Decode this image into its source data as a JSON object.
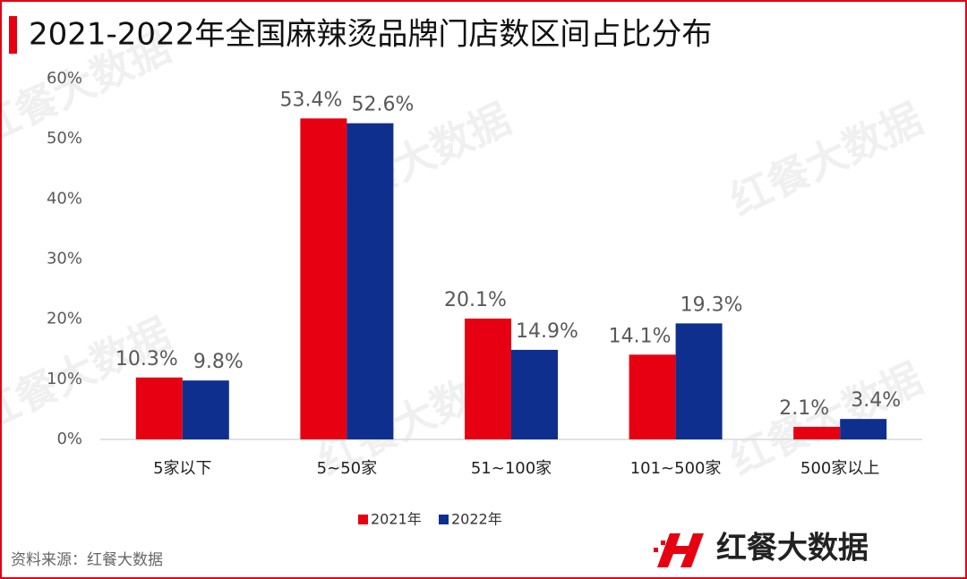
{
  "chart_data": {
    "type": "bar",
    "title": "2021-2022年全国麻辣烫品牌门店数区间占比分布",
    "categories": [
      "5家以下",
      "5~50家",
      "51~100家",
      "101~500家",
      "500家以上"
    ],
    "series": [
      {
        "name": "2021年",
        "color": "#e60012",
        "values": [
          10.3,
          53.4,
          20.1,
          14.1,
          2.1
        ],
        "value_labels": [
          "10.3%",
          "53.4%",
          "20.1%",
          "14.1%",
          "2.1%"
        ]
      },
      {
        "name": "2022年",
        "color": "#0f2f8f",
        "values": [
          9.8,
          52.6,
          14.9,
          19.3,
          3.4
        ],
        "value_labels": [
          "9.8%",
          "52.6%",
          "14.9%",
          "19.3%",
          "3.4%"
        ]
      }
    ],
    "ylim": [
      0,
      60
    ],
    "yticks": [
      {
        "value": 0,
        "label": "0%"
      },
      {
        "value": 10,
        "label": "10%"
      },
      {
        "value": 20,
        "label": "20%"
      },
      {
        "value": 30,
        "label": "30%"
      },
      {
        "value": 40,
        "label": "40%"
      },
      {
        "value": 50,
        "label": "50%"
      },
      {
        "value": 60,
        "label": "60%"
      }
    ],
    "grid": false,
    "legend": "bottom",
    "source": "资料来源：红餐大数据",
    "logo": "红餐大数据"
  }
}
